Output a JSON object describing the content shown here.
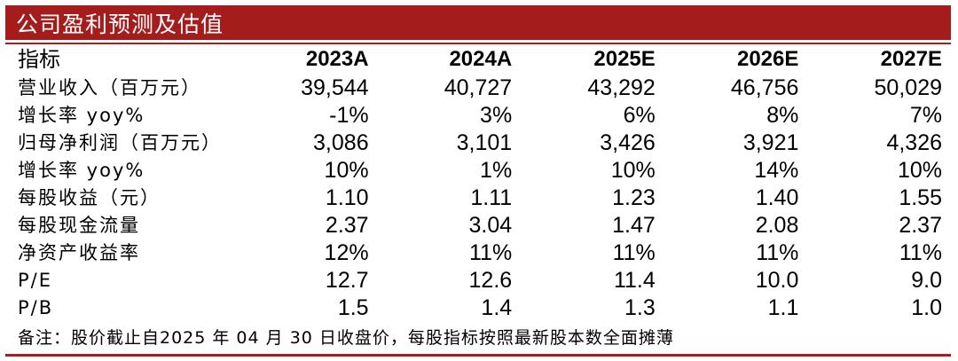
{
  "title": "公司盈利预测及估值",
  "colors": {
    "accent": "#a41c1c",
    "title_text": "#ffffff"
  },
  "table": {
    "label_header": "指标",
    "years": [
      "2023A",
      "2024A",
      "2025E",
      "2026E",
      "2027E"
    ],
    "rows": [
      {
        "label": "营业收入（百万元）",
        "values": [
          "39,544",
          "40,727",
          "43,292",
          "46,756",
          "50,029"
        ]
      },
      {
        "label": "增长率 yoy%",
        "values": [
          "-1%",
          "3%",
          "6%",
          "8%",
          "7%"
        ]
      },
      {
        "label": "归母净利润（百万元）",
        "values": [
          "3,086",
          "3,101",
          "3,426",
          "3,921",
          "4,326"
        ]
      },
      {
        "label": "增长率 yoy%",
        "values": [
          "10%",
          "1%",
          "10%",
          "14%",
          "10%"
        ]
      },
      {
        "label": "每股收益（元）",
        "values": [
          "1.10",
          "1.11",
          "1.23",
          "1.40",
          "1.55"
        ]
      },
      {
        "label": "每股现金流量",
        "values": [
          "2.37",
          "3.04",
          "1.47",
          "2.08",
          "2.37"
        ]
      },
      {
        "label": "净资产收益率",
        "values": [
          "12%",
          "11%",
          "11%",
          "11%",
          "11%"
        ]
      },
      {
        "label": "P/E",
        "values": [
          "12.7",
          "12.6",
          "11.4",
          "10.0",
          "9.0"
        ]
      },
      {
        "label": "P/B",
        "values": [
          "1.5",
          "1.4",
          "1.3",
          "1.1",
          "1.0"
        ]
      }
    ]
  },
  "note": "备注：股价截止自2025 年 04 月 30 日收盘价，每股指标按照最新股本数全面摊薄"
}
